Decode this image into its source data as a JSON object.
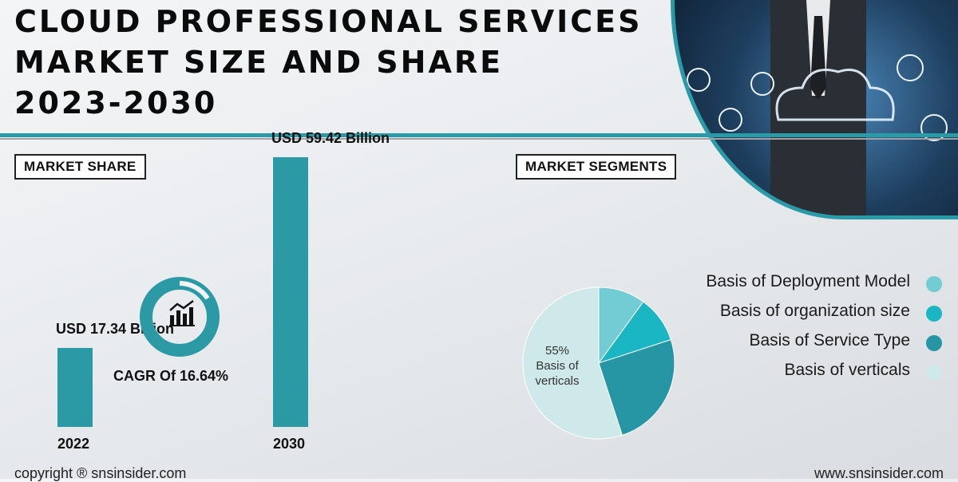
{
  "title": {
    "line1": "CLOUD PROFESSIONAL SERVICES",
    "line2": "MARKET SIZE AND SHARE",
    "line3": "2023-2030"
  },
  "market_share_label": "MARKET SHARE",
  "market_segments_label": "MARKET SEGMENTS",
  "cagr_text": "CAGR Of 16.64%",
  "pie_center_label": {
    "pct": "55%",
    "line1": "Basis of",
    "line2": "verticals"
  },
  "footer": {
    "copyright": "copyright ® snsinsider.com",
    "website": "www.snsinsider.com"
  },
  "colors": {
    "accent": "#2a9aa6",
    "bar": "#2b9aa4",
    "slice1": "#72ccd3",
    "slice2": "#1bb6c3",
    "slice3": "#2696a4",
    "slice4": "#cfe9eb"
  },
  "chart_data": [
    {
      "type": "bar",
      "categories": [
        "2022",
        "2030"
      ],
      "values": [
        17.34,
        59.42
      ],
      "data_labels": [
        "USD 17.34 Billion",
        "USD 59.42 Billion"
      ],
      "ylim": [
        0,
        65
      ],
      "grid": false
    },
    {
      "type": "pie",
      "labels": [
        "Basis of Deployment Model",
        "Basis of organization size",
        "Basis of Service Type",
        "Basis of verticals"
      ],
      "values": [
        10,
        10,
        25,
        55
      ],
      "legend_position": "top-right"
    }
  ]
}
